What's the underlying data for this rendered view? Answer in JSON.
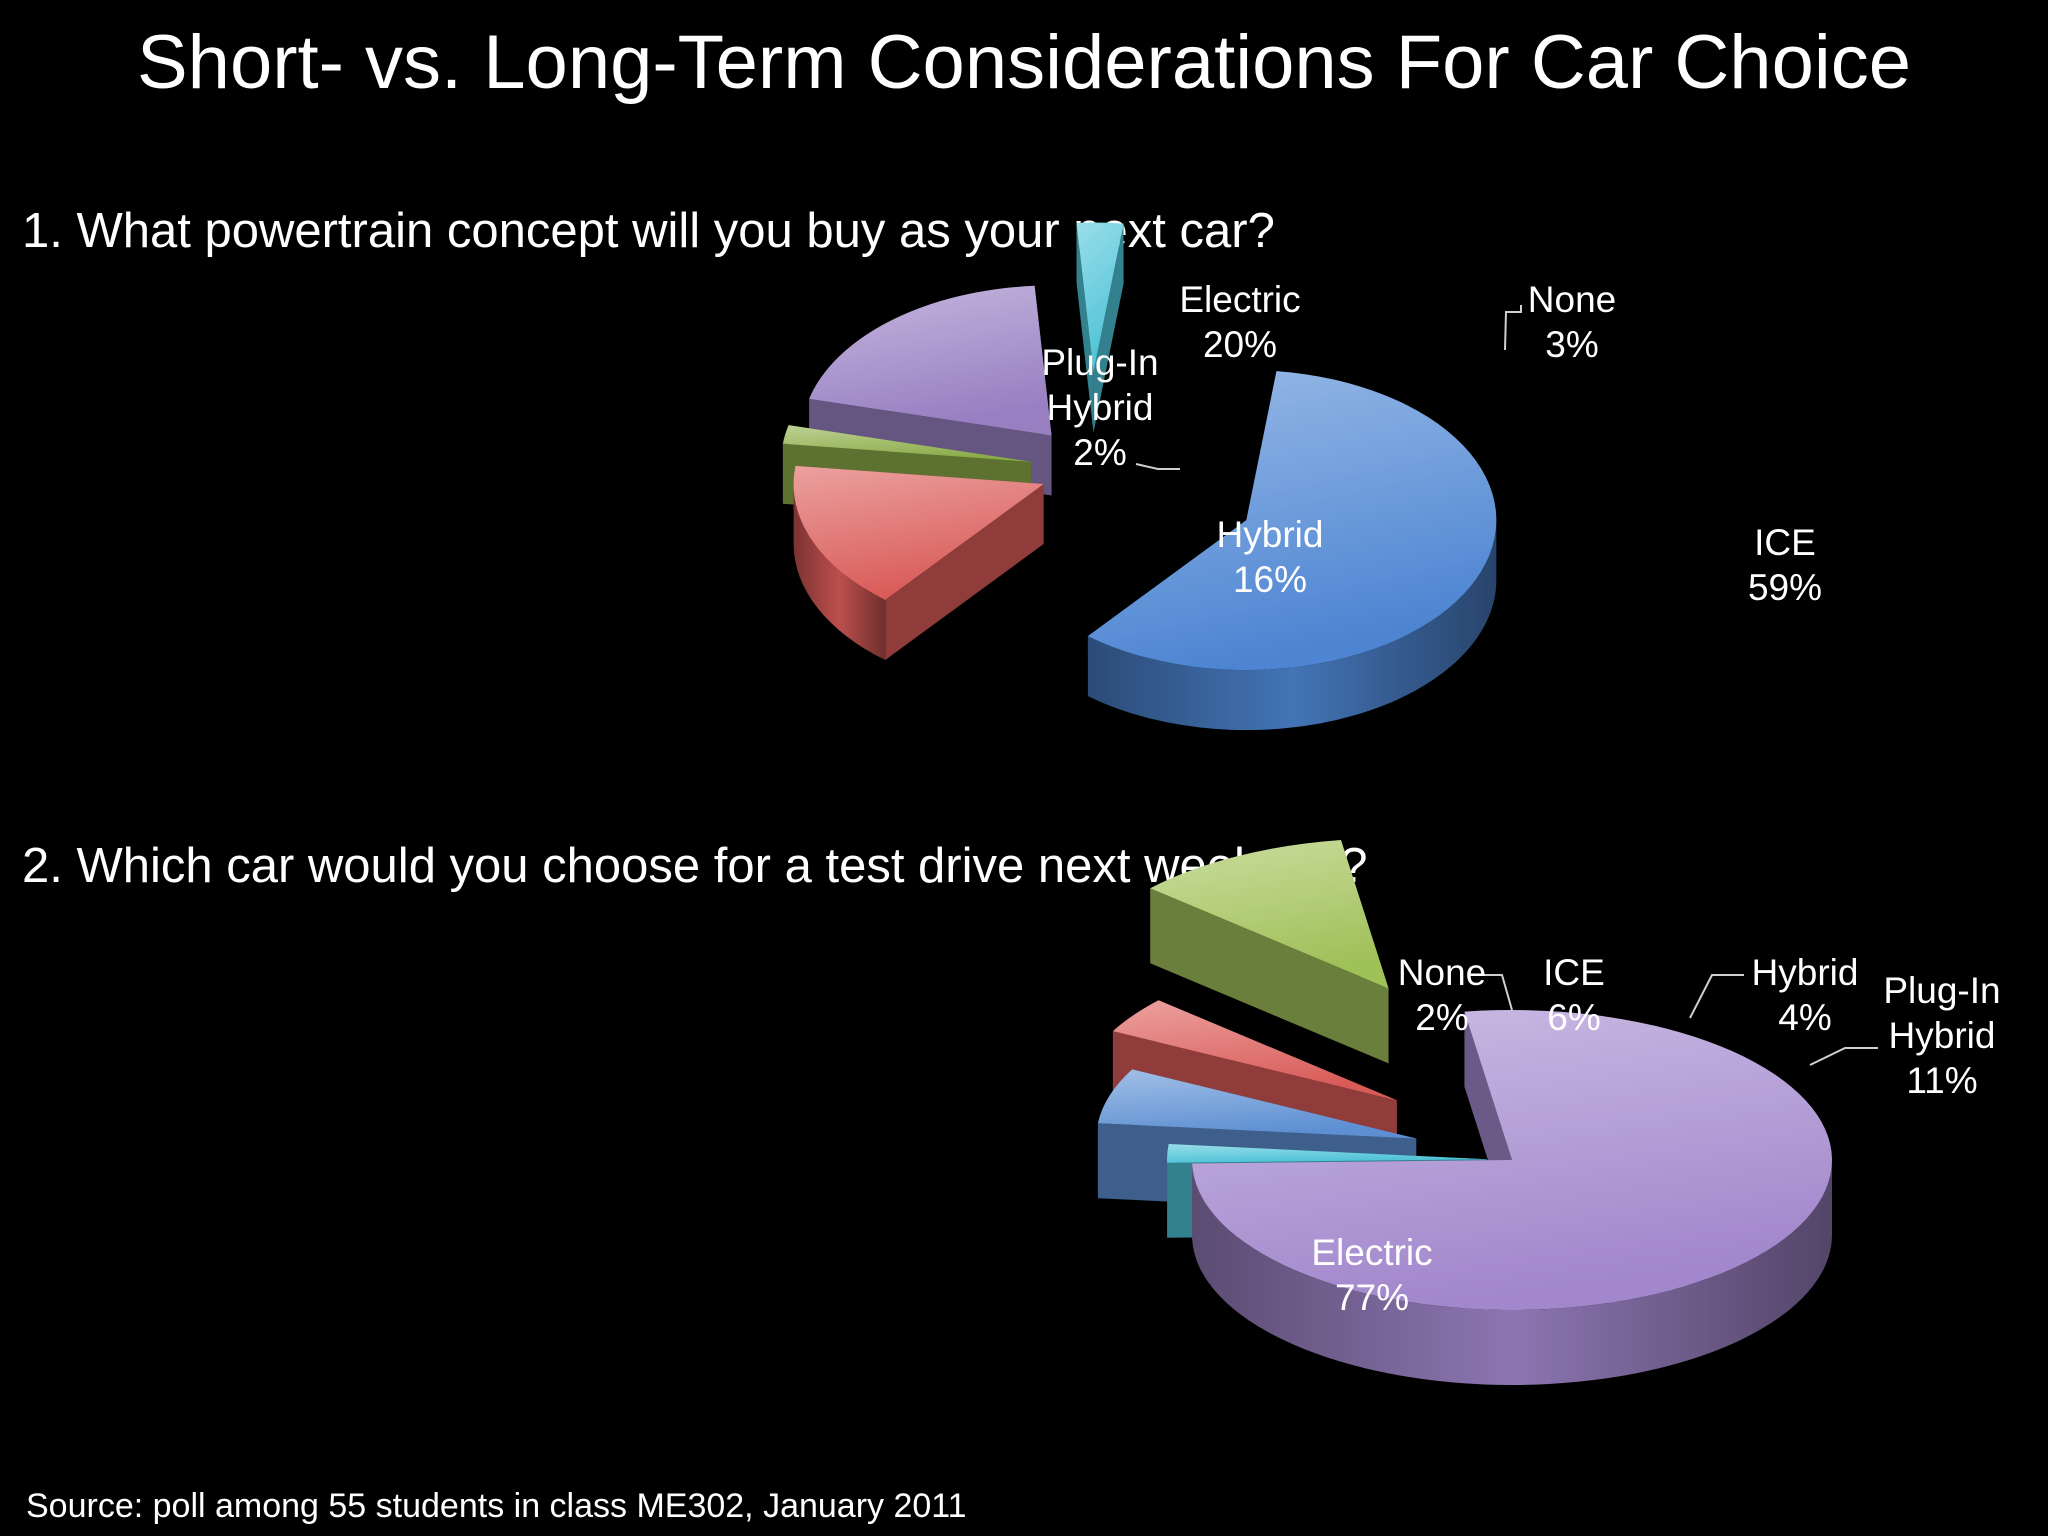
{
  "slide": {
    "title": "Short- vs. Long-Term Considerations For Car Choice",
    "source": "Source: poll among 55 students in class ME302, January 2011"
  },
  "chart_data": [
    {
      "type": "pie",
      "title": "1. What powertrain concept will you buy as your next car?",
      "categories": [
        "ICE",
        "Hybrid",
        "Plug-In Hybrid",
        "Electric",
        "None"
      ],
      "values": [
        59,
        16,
        2,
        20,
        3
      ],
      "data_labels": [
        [
          "ICE",
          "59%"
        ],
        [
          "Hybrid",
          "16%"
        ],
        [
          "Plug-In",
          "Hybrid",
          "2%"
        ],
        [
          "Electric",
          "20%"
        ],
        [
          "None",
          "3%"
        ]
      ],
      "colors": [
        "#4f88d6",
        "#dd5d5a",
        "#8fb04a",
        "#9b82c6",
        "#4fc6da"
      ],
      "style": "3d-exploded"
    },
    {
      "type": "pie",
      "title": "2. Which car would you choose for a test drive next weekend?",
      "categories": [
        "Electric",
        "None",
        "ICE",
        "Hybrid",
        "Plug-In Hybrid"
      ],
      "values": [
        77,
        2,
        6,
        4,
        11
      ],
      "data_labels": [
        [
          "Electric",
          "77%"
        ],
        [
          "None",
          "2%"
        ],
        [
          "ICE",
          "6%"
        ],
        [
          "Hybrid",
          "4%"
        ],
        [
          "Plug-In",
          "Hybrid",
          "11%"
        ]
      ],
      "colors": [
        "#a58ad0",
        "#4fc6da",
        "#5f92d6",
        "#dd5d5a",
        "#a3c45a"
      ],
      "style": "3d-exploded"
    }
  ]
}
